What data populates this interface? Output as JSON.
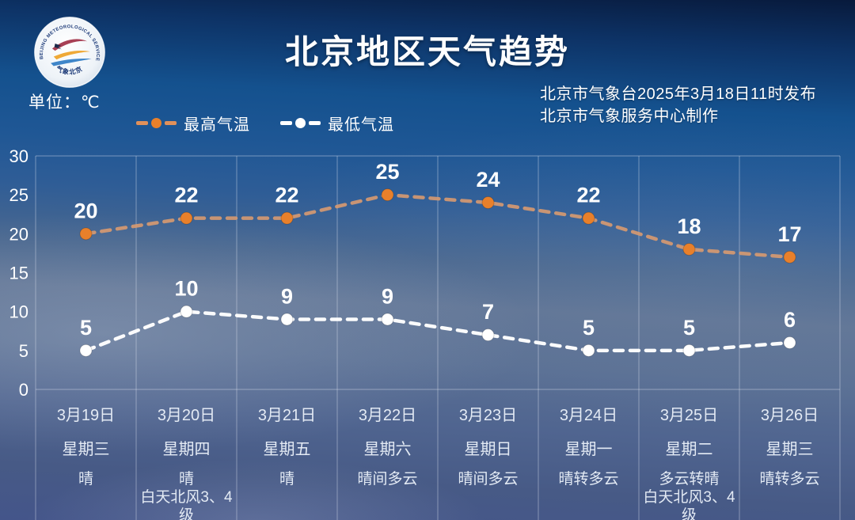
{
  "header": {
    "title": "北京地区天气趋势",
    "unit_label": "单位：℃",
    "publisher_line1": "北京市气象台2025年3月18日11时发布",
    "publisher_line2": "北京市气象服务中心制作"
  },
  "logo": {
    "arc_text": "BEIJING METEOROLOGICAL SERVICE",
    "bottom_text": "气象北京"
  },
  "legend": [
    {
      "label": "最高气温",
      "color": "#e8802b"
    },
    {
      "label": "最低气温",
      "color": "#ffffff"
    }
  ],
  "chart_data": {
    "type": "line",
    "title": "北京地区天气趋势",
    "unit": "℃",
    "x": [
      "3月19日",
      "3月20日",
      "3月21日",
      "3月22日",
      "3月23日",
      "3月24日",
      "3月25日",
      "3月26日"
    ],
    "weekdays": [
      "星期三",
      "星期四",
      "星期五",
      "星期六",
      "星期日",
      "星期一",
      "星期二",
      "星期三"
    ],
    "conditions": [
      [
        "晴"
      ],
      [
        "晴",
        "白天北风3、4级"
      ],
      [
        "晴"
      ],
      [
        "晴间多云"
      ],
      [
        "晴间多云"
      ],
      [
        "晴转多云"
      ],
      [
        "多云转晴",
        "白天北风3、4级"
      ],
      [
        "晴转多云"
      ]
    ],
    "series": [
      {
        "name": "最高气温",
        "values": [
          20,
          22,
          22,
          25,
          24,
          22,
          18,
          17
        ],
        "marker_color": "#e8802b",
        "line_color": "#d89a70"
      },
      {
        "name": "最低气温",
        "values": [
          5,
          10,
          9,
          9,
          7,
          5,
          5,
          6
        ],
        "marker_color": "#ffffff",
        "line_color": "#ffffff"
      }
    ],
    "ylim": [
      0,
      30
    ],
    "yticks": [
      0,
      5,
      10,
      15,
      20,
      25,
      30
    ],
    "grid": "vertical column separators, borders at y=0 and y=30",
    "legend_position": "top-left above plot",
    "line_style": "dashed with point markers and value labels above points"
  }
}
